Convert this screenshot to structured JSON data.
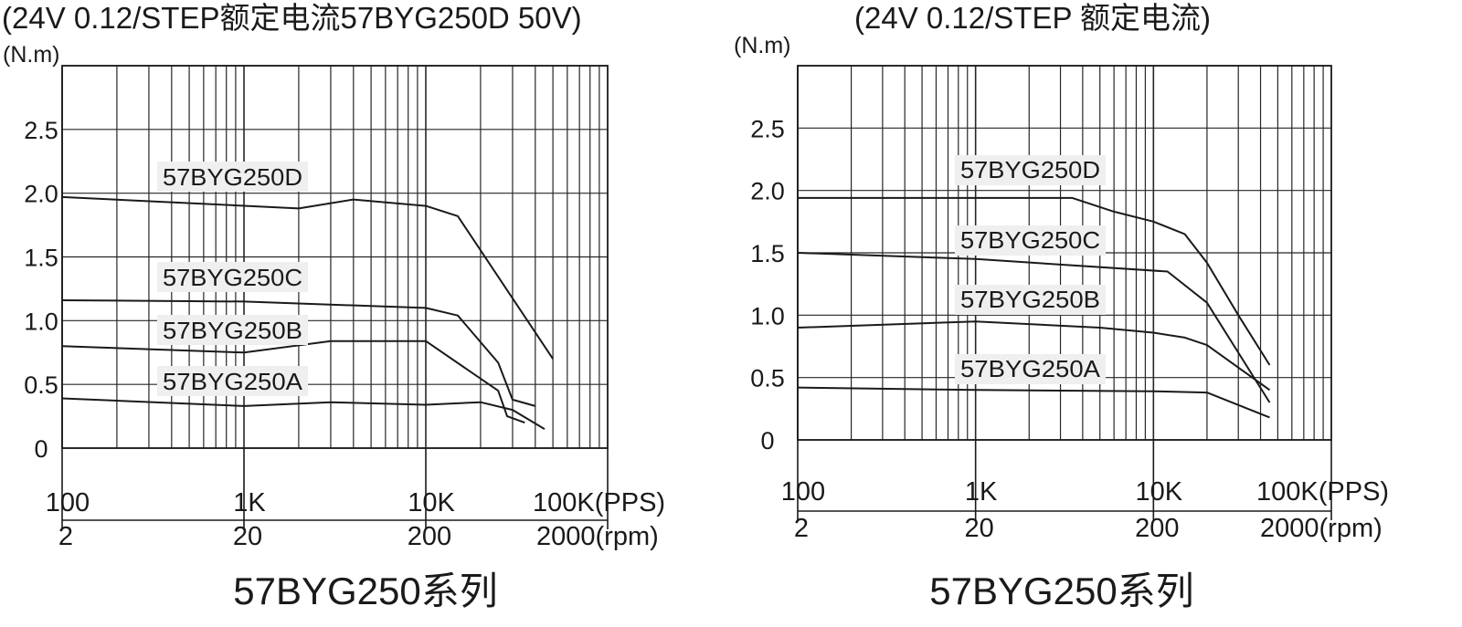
{
  "chart_data": [
    {
      "type": "line",
      "title": "(24V 0.12/STEP额定电流57BYG250D 50V)",
      "ylabel": "(N.m)",
      "x_scale": "log",
      "xlim": [
        100,
        100000
      ],
      "ylim": [
        0,
        3
      ],
      "y_ticks": [
        "0",
        "0.5",
        "1.0",
        "1.5",
        "2.0",
        "2.5"
      ],
      "x_ticks_pps": [
        "100",
        "1K",
        "10K",
        "100K(PPS)"
      ],
      "x_ticks_rpm": [
        "2",
        "20",
        "200",
        "2000(rpm)"
      ],
      "caption": "57BYG250系列",
      "series": [
        {
          "name": "57BYG250D",
          "x": [
            100,
            2000,
            4000,
            10000,
            15000,
            50000
          ],
          "y": [
            1.97,
            1.88,
            1.95,
            1.9,
            1.82,
            0.7
          ]
        },
        {
          "name": "57BYG250C",
          "x": [
            100,
            1000,
            10000,
            15000,
            25000,
            30000,
            40000
          ],
          "y": [
            1.16,
            1.15,
            1.1,
            1.04,
            0.67,
            0.38,
            0.33
          ]
        },
        {
          "name": "57BYG250B",
          "x": [
            100,
            1000,
            3000,
            10000,
            25000,
            28000,
            35000
          ],
          "y": [
            0.8,
            0.75,
            0.84,
            0.84,
            0.45,
            0.25,
            0.2
          ]
        },
        {
          "name": "57BYG250A",
          "x": [
            100,
            1000,
            3000,
            10000,
            20000,
            30000,
            45000
          ],
          "y": [
            0.39,
            0.33,
            0.36,
            0.34,
            0.36,
            0.3,
            0.15
          ]
        }
      ]
    },
    {
      "type": "line",
      "title": "(24V 0.12/STEP 额定电流)",
      "ylabel": "(N.m)",
      "x_scale": "log",
      "xlim": [
        100,
        100000
      ],
      "ylim": [
        0,
        3
      ],
      "y_ticks": [
        "0",
        "0.5",
        "1.0",
        "1.5",
        "2.0",
        "2.5"
      ],
      "x_ticks_pps": [
        "100",
        "1K",
        "10K",
        "100K(PPS)"
      ],
      "x_ticks_rpm": [
        "2",
        "20",
        "200",
        "2000(rpm)"
      ],
      "caption": "57BYG250系列",
      "series": [
        {
          "name": "57BYG250D",
          "x": [
            100,
            3500,
            6000,
            10000,
            15000,
            20000,
            30000,
            45000
          ],
          "y": [
            1.94,
            1.94,
            1.83,
            1.75,
            1.65,
            1.42,
            1.0,
            0.6
          ]
        },
        {
          "name": "57BYG250C",
          "x": [
            100,
            1000,
            12000,
            20000,
            45000
          ],
          "y": [
            1.5,
            1.45,
            1.35,
            1.1,
            0.3
          ]
        },
        {
          "name": "57BYG250B",
          "x": [
            100,
            1000,
            5000,
            10000,
            15000,
            20000,
            45000
          ],
          "y": [
            0.9,
            0.95,
            0.9,
            0.86,
            0.82,
            0.76,
            0.4
          ]
        },
        {
          "name": "57BYG250A",
          "x": [
            100,
            1000,
            10000,
            20000,
            45000
          ],
          "y": [
            0.42,
            0.4,
            0.39,
            0.38,
            0.18
          ]
        }
      ]
    }
  ]
}
